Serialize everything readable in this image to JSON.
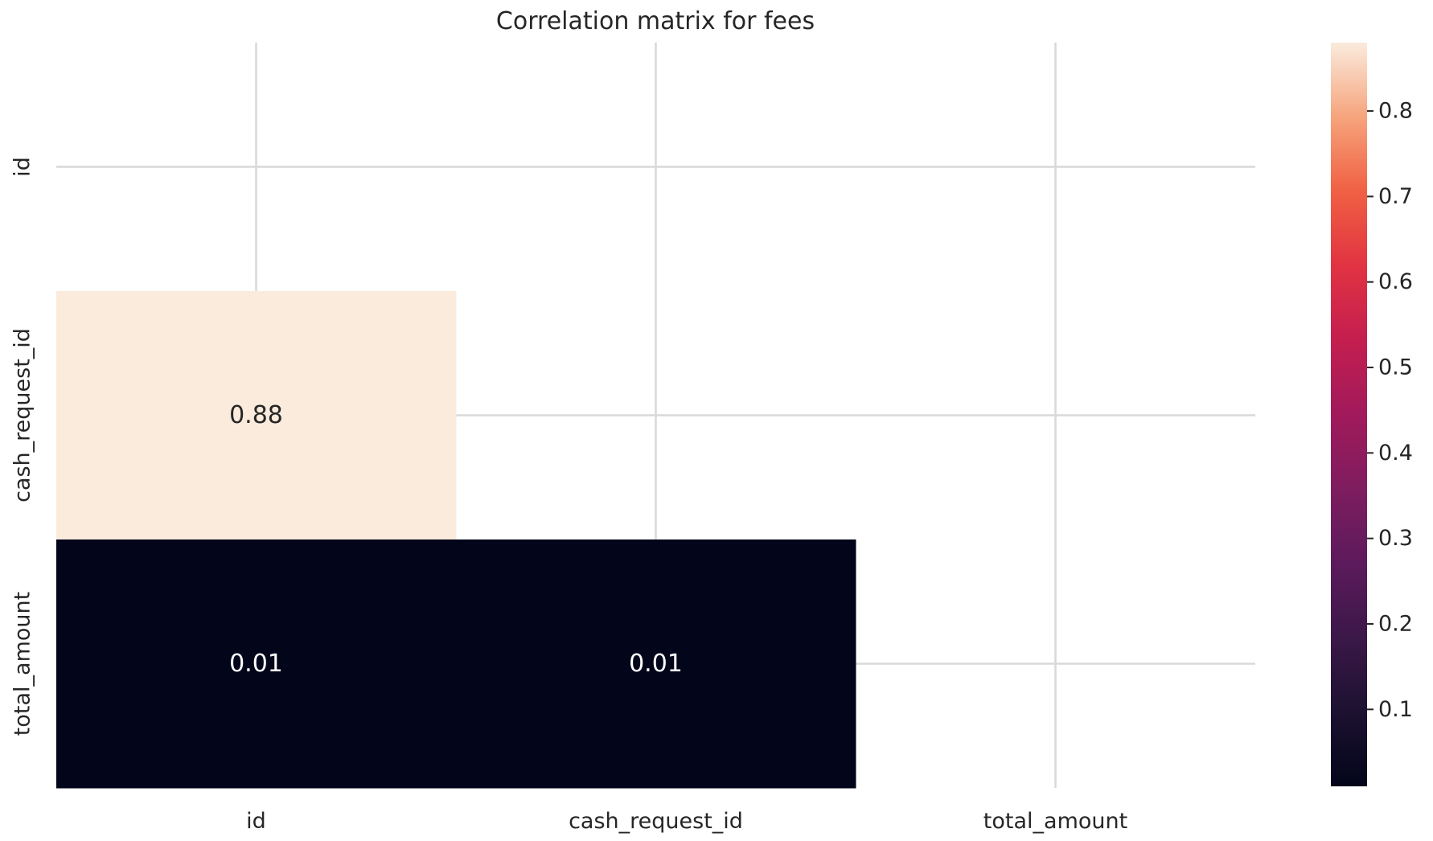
{
  "chart_data": {
    "type": "heatmap",
    "title": "Correlation matrix for fees",
    "xlabel": "",
    "ylabel": "",
    "x_categories": [
      "id",
      "cash_request_id",
      "total_amount"
    ],
    "y_categories": [
      "id",
      "cash_request_id",
      "total_amount"
    ],
    "mask": "upper-triangle-including-diagonal",
    "cells": [
      {
        "row": "cash_request_id",
        "col": "id",
        "value": 0.88,
        "label": "0.88"
      },
      {
        "row": "total_amount",
        "col": "id",
        "value": 0.01,
        "label": "0.01"
      },
      {
        "row": "total_amount",
        "col": "cash_request_id",
        "value": 0.01,
        "label": "0.01"
      }
    ],
    "colorbar": {
      "colormap": "rocket",
      "range": [
        0.01,
        0.88
      ],
      "ticks": [
        0.1,
        0.2,
        0.3,
        0.4,
        0.5,
        0.6,
        0.7,
        0.8
      ],
      "tick_labels": [
        "0.1",
        "0.2",
        "0.3",
        "0.4",
        "0.5",
        "0.6",
        "0.7",
        "0.8"
      ]
    },
    "grid": true,
    "colors": {
      "high": "#faebdd",
      "low": "#03051a",
      "grid": "#d9d9d9",
      "annotation_on_light": "#262626",
      "annotation_on_dark": "#ffffff"
    }
  }
}
